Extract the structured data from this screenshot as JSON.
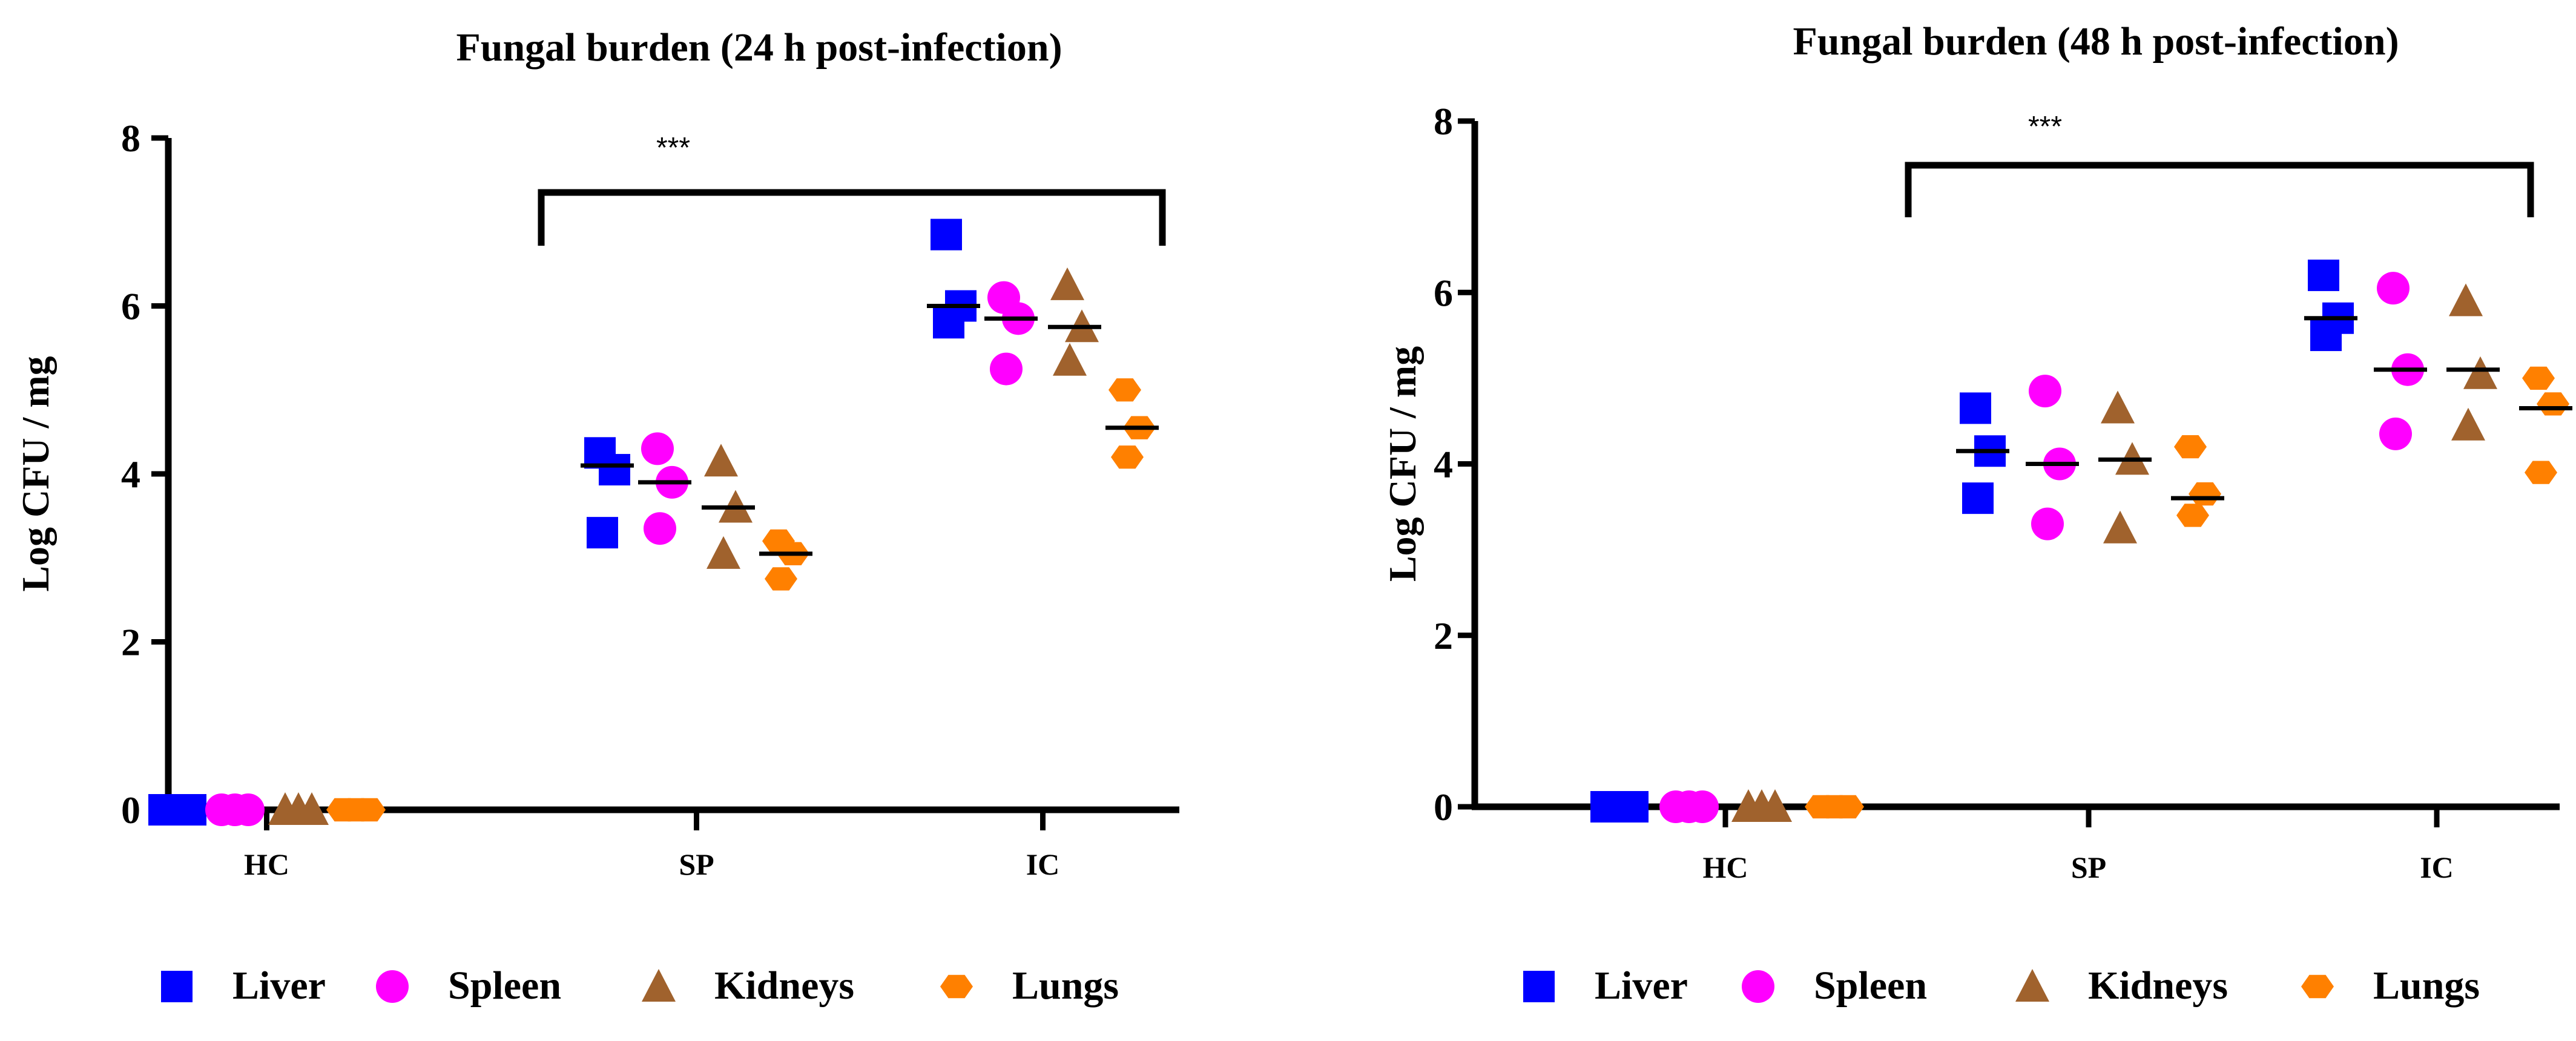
{
  "chart_data": [
    {
      "type": "scatter",
      "title": "Fungal burden (24 h post-infection)",
      "ylabel": "Log CFU / mg",
      "xlabel": "",
      "ylim": [
        0,
        8
      ],
      "yticks": [
        0,
        2,
        4,
        6,
        8
      ],
      "categories": [
        "HC",
        "SP",
        "IC"
      ],
      "significance": {
        "label": "***",
        "from": "SP",
        "to": "IC",
        "y": 7.35
      },
      "series": [
        {
          "name": "Liver",
          "marker": "square",
          "color": "#0000ff",
          "points": [
            [
              0,
              0,
              0
            ],
            [
              4.25,
              4.05,
              3.3
            ],
            [
              6.85,
              6.0,
              5.8
            ]
          ],
          "means": [
            0,
            4.1,
            6.0
          ]
        },
        {
          "name": "Spleen",
          "marker": "circle",
          "color": "#ff00ff",
          "points": [
            [
              0,
              0,
              0
            ],
            [
              4.3,
              3.9,
              3.35
            ],
            [
              6.1,
              5.85,
              5.25
            ]
          ],
          "means": [
            0,
            3.9,
            5.85
          ]
        },
        {
          "name": "Kidneys",
          "marker": "triangle",
          "color": "#a0622d",
          "points": [
            [
              0,
              0,
              0
            ],
            [
              4.15,
              3.6,
              3.05
            ],
            [
              6.25,
              5.75,
              5.35
            ]
          ],
          "means": [
            0,
            3.6,
            5.75
          ]
        },
        {
          "name": "Lungs",
          "marker": "hexagon",
          "color": "#ff8000",
          "points": [
            [
              0,
              0,
              0
            ],
            [
              3.2,
              3.05,
              2.75
            ],
            [
              5.0,
              4.55,
              4.2
            ]
          ],
          "means": [
            0,
            3.05,
            4.55
          ]
        }
      ]
    },
    {
      "type": "scatter",
      "title": "Fungal burden (48 h post-infection)",
      "ylabel": "Log CFU / mg",
      "xlabel": "",
      "ylim": [
        0,
        8
      ],
      "yticks": [
        0,
        2,
        4,
        6,
        8
      ],
      "categories": [
        "HC",
        "SP",
        "IC"
      ],
      "significance": {
        "label": "***",
        "from": "SP",
        "to": "IC",
        "y": 7.35
      },
      "series": [
        {
          "name": "Liver",
          "marker": "square",
          "color": "#0000ff",
          "points": [
            [
              0,
              0,
              0
            ],
            [
              4.65,
              4.15,
              3.6
            ],
            [
              6.2,
              5.7,
              5.5
            ]
          ],
          "means": [
            0,
            4.15,
            5.7
          ]
        },
        {
          "name": "Spleen",
          "marker": "circle",
          "color": "#ff00ff",
          "points": [
            [
              0,
              0,
              0
            ],
            [
              4.85,
              4.0,
              3.3
            ],
            [
              6.05,
              5.1,
              4.35
            ]
          ],
          "means": [
            0,
            4.0,
            5.1
          ]
        },
        {
          "name": "Kidneys",
          "marker": "triangle",
          "color": "#a0622d",
          "points": [
            [
              0,
              0,
              0
            ],
            [
              4.65,
              4.05,
              3.25
            ],
            [
              5.9,
              5.05,
              4.45
            ]
          ],
          "means": [
            0,
            4.05,
            5.1
          ]
        },
        {
          "name": "Lungs",
          "marker": "hexagon",
          "color": "#ff8000",
          "points": [
            [
              0,
              0,
              0
            ],
            [
              4.2,
              3.65,
              3.4
            ],
            [
              5.0,
              4.7,
              3.9
            ]
          ],
          "means": [
            0,
            3.6,
            4.65
          ]
        }
      ]
    }
  ]
}
